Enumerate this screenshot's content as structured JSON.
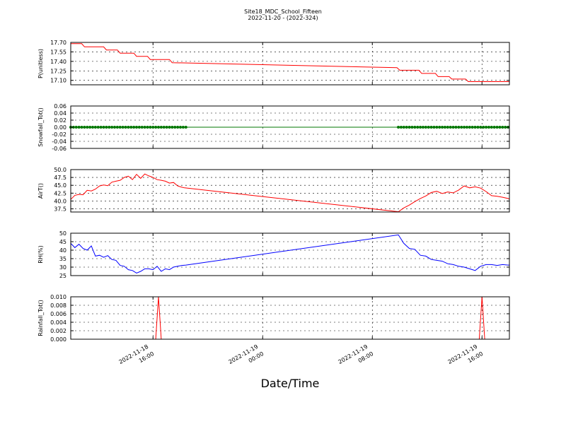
{
  "chart_data": {
    "type": "line",
    "title": "Site18_MDC_School_Fifteen",
    "subtitle": "2022-11-20 - (2022-324)",
    "xlabel": "Date/Time",
    "x_ticks": [
      {
        "pos": 16,
        "line1": "2022-11-18",
        "line2": "16:00"
      },
      {
        "pos": 24,
        "line1": "2022-11-19",
        "line2": "00:00"
      },
      {
        "pos": 32,
        "line1": "2022-11-19",
        "line2": "08:00"
      },
      {
        "pos": 40,
        "line1": "2022-11-19",
        "line2": "16:00"
      }
    ],
    "xlim": [
      10,
      42
    ],
    "panels": [
      {
        "ylabel": "P(unitless)",
        "color": "#ff0000",
        "ylim": [
          17.03,
          17.7
        ],
        "yticks": [
          "17.70",
          "17.55",
          "17.40",
          "17.25",
          "17.10"
        ],
        "ytick_values": [
          17.7,
          17.55,
          17.4,
          17.25,
          17.1
        ],
        "markers": false,
        "x": [
          10,
          10.8,
          11.0,
          12.4,
          12.6,
          13.4,
          13.6,
          14.6,
          14.8,
          15.6,
          15.8,
          17.2,
          17.4,
          33.8,
          34.0,
          35.4,
          35.6,
          36.6,
          36.8,
          37.6,
          37.8,
          38.8,
          39.0,
          39.6,
          39.8,
          42
        ],
        "y": [
          17.68,
          17.68,
          17.63,
          17.63,
          17.58,
          17.58,
          17.53,
          17.53,
          17.48,
          17.48,
          17.43,
          17.43,
          17.38,
          17.3,
          17.26,
          17.26,
          17.21,
          17.21,
          17.16,
          17.16,
          17.12,
          17.12,
          17.08,
          17.08,
          17.08,
          17.08
        ]
      },
      {
        "ylabel": "Snowfall_Tot()",
        "color": "#007700",
        "ylim": [
          -0.06,
          0.06
        ],
        "yticks": [
          "0.06",
          "0.04",
          "0.02",
          "0.00",
          "-0.02",
          "-0.04",
          "-0.06"
        ],
        "ytick_values": [
          0.06,
          0.04,
          0.02,
          0.0,
          -0.02,
          -0.04,
          -0.06
        ],
        "markers": true,
        "marker_ranges": [
          [
            10,
            18.4
          ],
          [
            33.9,
            42
          ]
        ],
        "x": [
          10,
          42
        ],
        "y": [
          0,
          0
        ]
      },
      {
        "ylabel": "AirT()",
        "color": "#ff0000",
        "ylim": [
          36.5,
          50
        ],
        "yticks": [
          "50.0",
          "47.5",
          "45.0",
          "42.5",
          "40.0",
          "37.5"
        ],
        "ytick_values": [
          50.0,
          47.5,
          45.0,
          42.5,
          40.0,
          37.5
        ],
        "markers": false,
        "x": [
          10,
          10.3,
          10.6,
          10.9,
          11.2,
          11.5,
          11.8,
          12.1,
          12.4,
          12.7,
          13.0,
          13.3,
          13.6,
          13.9,
          14.2,
          14.5,
          14.8,
          15.1,
          15.4,
          15.7,
          16.0,
          16.3,
          16.6,
          16.9,
          17.2,
          17.5,
          17.8,
          18.1,
          18.3,
          33.9,
          34.3,
          34.7,
          35.1,
          35.5,
          35.9,
          36.3,
          36.7,
          37.1,
          37.5,
          37.9,
          38.3,
          38.7,
          39.1,
          39.5,
          39.9,
          40.3,
          40.7,
          41.1,
          41.5,
          41.9,
          42
        ],
        "y": [
          40.5,
          41.8,
          42.1,
          42.0,
          43.4,
          43.2,
          43.8,
          44.8,
          45.1,
          44.9,
          46.0,
          46.3,
          46.6,
          47.5,
          47.9,
          46.8,
          48.5,
          47.2,
          48.6,
          48.0,
          47.5,
          46.8,
          46.6,
          46.3,
          45.7,
          45.9,
          44.8,
          44.4,
          44.2,
          36.6,
          37.8,
          38.7,
          39.8,
          40.8,
          41.6,
          42.7,
          43.1,
          42.4,
          42.9,
          42.6,
          43.5,
          44.8,
          44.2,
          44.5,
          44.1,
          43.0,
          41.7,
          41.5,
          41.2,
          40.8,
          40.6
        ]
      },
      {
        "ylabel": "RH(%)",
        "color": "#0000ff",
        "ylim": [
          25,
          50
        ],
        "yticks": [
          "50",
          "45",
          "40",
          "35",
          "30",
          "25"
        ],
        "ytick_values": [
          50,
          45,
          40,
          35,
          30,
          25
        ],
        "markers": false,
        "x": [
          10,
          10.3,
          10.6,
          10.9,
          11.2,
          11.5,
          11.8,
          12.1,
          12.4,
          12.7,
          13.0,
          13.3,
          13.6,
          13.9,
          14.2,
          14.5,
          14.8,
          15.1,
          15.4,
          15.7,
          16.0,
          16.3,
          16.6,
          16.9,
          17.2,
          17.5,
          17.8,
          18.1,
          18.4,
          33.9,
          34.3,
          34.7,
          35.1,
          35.5,
          35.9,
          36.3,
          36.7,
          37.1,
          37.5,
          37.9,
          38.3,
          38.7,
          39.1,
          39.5,
          39.9,
          40.3,
          40.7,
          41.1,
          41.5,
          41.9,
          42
        ],
        "y": [
          44,
          41.5,
          43.5,
          41,
          40,
          42.5,
          36.5,
          37,
          35.8,
          36.8,
          34.5,
          34,
          31,
          30.5,
          28.5,
          28,
          26.5,
          27.5,
          29,
          29,
          28.5,
          30.5,
          27.5,
          29,
          28.5,
          30,
          30.5,
          31,
          31.2,
          49,
          44,
          41,
          40.5,
          37,
          36.5,
          34.5,
          34,
          33.5,
          32,
          31.5,
          30.5,
          30,
          29,
          28,
          30.5,
          31.5,
          31.5,
          31,
          31.5,
          31.2,
          31.2
        ]
      },
      {
        "ylabel": "Rainfall_Tot()",
        "color": "#ff0000",
        "ylim": [
          0,
          0.01
        ],
        "yticks": [
          "0.010",
          "0.008",
          "0.006",
          "0.004",
          "0.002",
          "0.000"
        ],
        "ytick_values": [
          0.01,
          0.008,
          0.006,
          0.004,
          0.002,
          0.0
        ],
        "markers": false,
        "x": [
          10,
          16.2,
          16.4,
          16.6,
          39.8,
          40.0,
          40.2,
          42
        ],
        "y": [
          0,
          0,
          0.01,
          0,
          0,
          0.01,
          0,
          0
        ]
      }
    ]
  }
}
